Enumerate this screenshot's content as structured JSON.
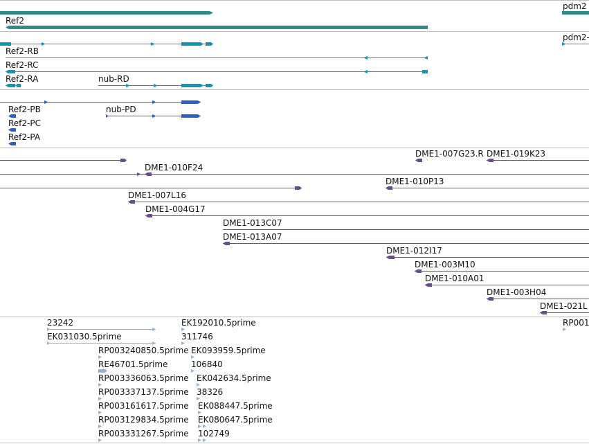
{
  "colors": {
    "gene": "#2e8b88",
    "transcript_a": "#1196b9",
    "transcript_b": "#2b63c4",
    "clone": "#6b4a9a",
    "est": "#8fb4d8",
    "divider": "#bdbdbd"
  },
  "tracks": {
    "genes": {
      "items": [
        {
          "label": "Ref2"
        },
        {
          "label": "pdm2"
        }
      ]
    },
    "transcripts_a": {
      "items": [
        {
          "label": "Ref2-RB"
        },
        {
          "label": "Ref2-RC"
        },
        {
          "label": "Ref2-RA"
        },
        {
          "label": "nub-RD"
        },
        {
          "label": "pdm2-"
        }
      ]
    },
    "transcripts_b": {
      "items": [
        {
          "label": "Ref2-PB"
        },
        {
          "label": "Ref2-PC"
        },
        {
          "label": "Ref2-PA"
        },
        {
          "label": "nub-PD"
        }
      ]
    },
    "clones": {
      "items": [
        {
          "label": "DME1-007G23.R"
        },
        {
          "label": "DME1-019K23"
        },
        {
          "label": "DME1-010F24"
        },
        {
          "label": "DME1-010P13"
        },
        {
          "label": "DME1-007L16"
        },
        {
          "label": "DME1-004G17"
        },
        {
          "label": "DME1-013C07"
        },
        {
          "label": "DME1-013A07"
        },
        {
          "label": "DME1-012I17"
        },
        {
          "label": "DME1-003M10"
        },
        {
          "label": "DME1-010A01"
        },
        {
          "label": "DME1-003H04"
        },
        {
          "label": "DME1-021L"
        }
      ]
    },
    "ests": {
      "items": [
        {
          "label": "23242"
        },
        {
          "label": "EK192010.5prime"
        },
        {
          "label": "RP001"
        },
        {
          "label": "EK031030.5prime"
        },
        {
          "label": "311746"
        },
        {
          "label": "RP003240850.5prime"
        },
        {
          "label": "EK093959.5prime"
        },
        {
          "label": "RE46701.5prime"
        },
        {
          "label": "106840"
        },
        {
          "label": "RP003336063.5prime"
        },
        {
          "label": "EK042634.5prime"
        },
        {
          "label": "RP003337137.5prime"
        },
        {
          "label": "38326"
        },
        {
          "label": "RP003161617.5prime"
        },
        {
          "label": "EK088447.5prime"
        },
        {
          "label": "RP003129834.5prime"
        },
        {
          "label": "EK080647.5prime"
        },
        {
          "label": "RP003331267.5prime"
        },
        {
          "label": "102749"
        }
      ]
    }
  }
}
